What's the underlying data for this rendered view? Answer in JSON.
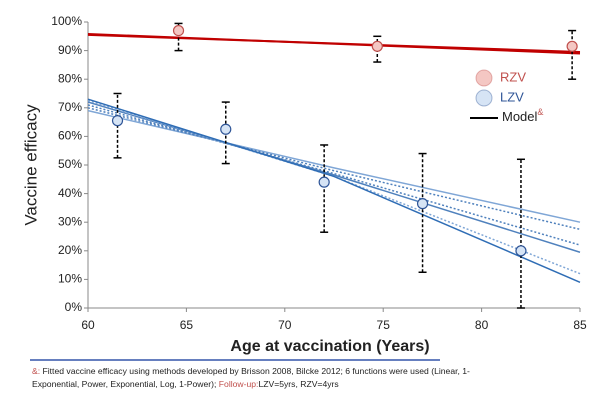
{
  "chart_data": {
    "type": "scatter",
    "xlabel": "Age at vaccination (Years)",
    "ylabel": "Vaccine efficacy",
    "xlim": [
      60,
      85
    ],
    "xticks": [
      60,
      65,
      70,
      75,
      80,
      85
    ],
    "ylim": [
      0,
      100
    ],
    "yticks": [
      {
        "value": 0,
        "label": "0%"
      },
      {
        "value": 10,
        "label": "10%"
      },
      {
        "value": 20,
        "label": "20%"
      },
      {
        "value": 30,
        "label": "30%"
      },
      {
        "value": 40,
        "label": "40%"
      },
      {
        "value": 50,
        "label": "50%"
      },
      {
        "value": 60,
        "label": "60%"
      },
      {
        "value": 70,
        "label": "70%"
      },
      {
        "value": 80,
        "label": "80%"
      },
      {
        "value": 90,
        "label": "90%"
      },
      {
        "value": 100,
        "label": "100%"
      }
    ],
    "grid": false,
    "series": [
      {
        "name": "RZV",
        "color": "#f4c7c3",
        "edge": "#c0504d",
        "x": [
          64.6,
          74.7,
          84.6
        ],
        "values": [
          97,
          91.5,
          91.5
        ],
        "lower": [
          90,
          86,
          80
        ],
        "upper": [
          99.5,
          95,
          97
        ]
      },
      {
        "name": "LZV",
        "color": "#d6e4f5",
        "edge": "#2f5597",
        "x": [
          61.5,
          67,
          72,
          77,
          82
        ],
        "values": [
          65.5,
          62.5,
          44,
          36.5,
          20
        ],
        "lower": [
          52.5,
          50.5,
          26.5,
          12.5,
          0
        ],
        "upper": [
          75,
          72,
          57,
          54,
          52
        ]
      }
    ],
    "models": [
      {
        "color": "#c00000",
        "style": "solid",
        "x": [
          60,
          85
        ],
        "values": [
          95.5,
          89.5
        ]
      },
      {
        "color": "#c00000",
        "style": "solid",
        "x": [
          60,
          85
        ],
        "values": [
          95.8,
          89
        ]
      },
      {
        "color": "#7fa6d6",
        "style": "solid",
        "x": [
          60,
          72.5,
          85
        ],
        "values": [
          69,
          49,
          30
        ]
      },
      {
        "color": "#4f81bd",
        "style": "dotted",
        "x": [
          60,
          72.5,
          85
        ],
        "values": [
          70,
          48,
          27.5
        ]
      },
      {
        "color": "#4f81bd",
        "style": "dotted",
        "x": [
          60,
          72.5,
          85
        ],
        "values": [
          71,
          47,
          22
        ]
      },
      {
        "color": "#4f81bd",
        "style": "solid",
        "x": [
          60,
          72.5,
          85
        ],
        "values": [
          72,
          46.5,
          19.5
        ]
      },
      {
        "color": "#7fa6d6",
        "style": "dotted",
        "x": [
          60,
          72.5,
          85
        ],
        "values": [
          72.5,
          46,
          12
        ]
      },
      {
        "color": "#2f6db5",
        "style": "solid",
        "x": [
          60,
          72.5,
          85
        ],
        "values": [
          73,
          46,
          9
        ]
      }
    ],
    "model_legend": {
      "label": "Model",
      "mark": "&"
    },
    "footnote": [
      [
        {
          "text": "&:",
          "color": "#c0504d"
        },
        {
          "text": " Fitted vaccine efficacy using methods developed by Brisson 2008, Bilcke 2012; 6 functions were used (Linear, 1-",
          "color": "#222222"
        }
      ],
      [
        {
          "text": "Exponential, Power, Exponential, Log, 1-Power); ",
          "color": "#222222"
        },
        {
          "text": "Follow-up:",
          "color": "#c0504d"
        },
        {
          "text": "LZV=5yrs, RZV=4yrs",
          "color": "#222222"
        }
      ]
    ]
  }
}
